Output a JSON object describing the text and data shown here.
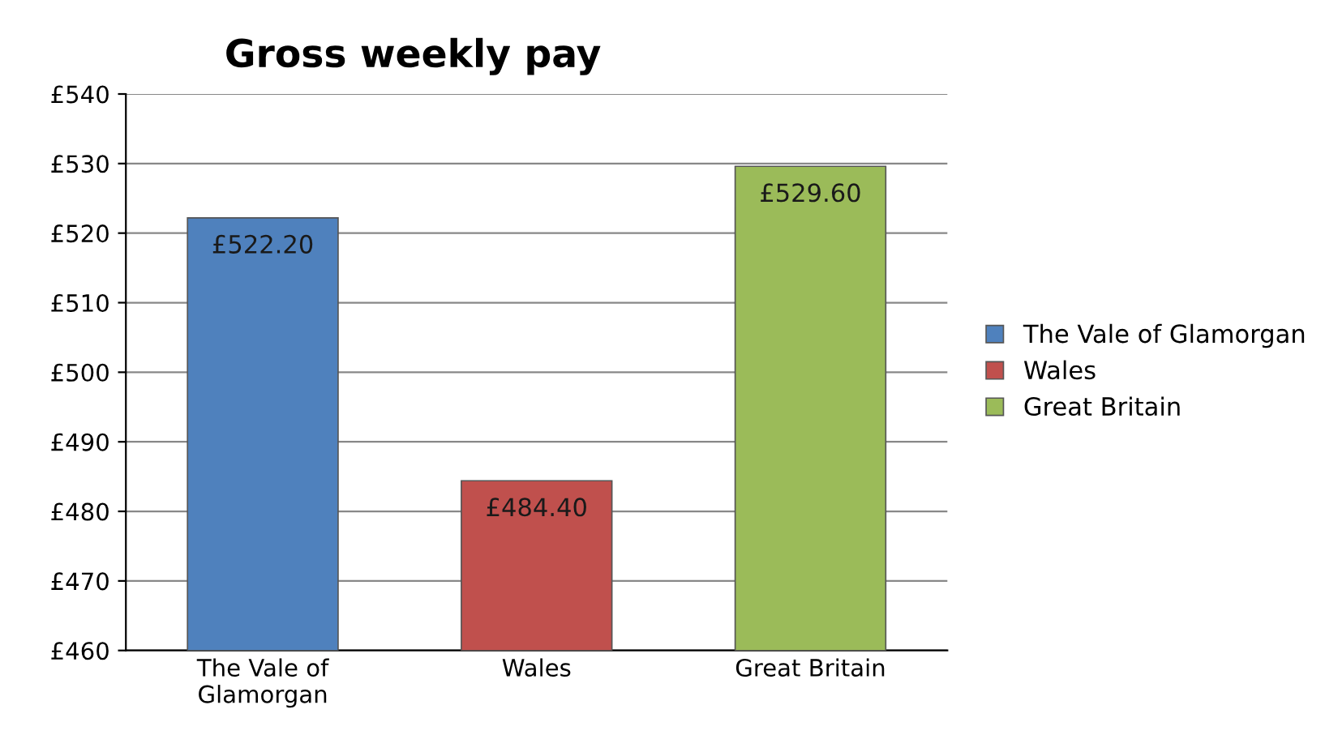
{
  "chart_data": {
    "type": "bar",
    "title": "Gross weekly pay",
    "categories": [
      "The Vale of\nGlamorgan",
      "Wales",
      "Great Britain"
    ],
    "series": [
      {
        "name": "The Vale of Glamorgan",
        "color": "#4f81bd",
        "values": [
          522.2,
          null,
          null
        ],
        "value_labels": [
          "£522.20",
          null,
          null
        ]
      },
      {
        "name": "Wales",
        "color": "#c0504d",
        "values": [
          null,
          484.4,
          null
        ],
        "value_labels": [
          null,
          "£484.40",
          null
        ]
      },
      {
        "name": "Great Britain",
        "color": "#9bbb59",
        "values": [
          null,
          null,
          529.6
        ],
        "value_labels": [
          null,
          null,
          "£529.60"
        ]
      }
    ],
    "ylim": [
      460,
      540
    ],
    "yticks": [
      {
        "value": 460,
        "label": "£460"
      },
      {
        "value": 470,
        "label": "£470"
      },
      {
        "value": 480,
        "label": "£480"
      },
      {
        "value": 490,
        "label": "£490"
      },
      {
        "value": 500,
        "label": "£500"
      },
      {
        "value": 510,
        "label": "£510"
      },
      {
        "value": 520,
        "label": "£520"
      },
      {
        "value": 530,
        "label": "£530"
      },
      {
        "value": 540,
        "label": "£540"
      }
    ],
    "grid": "y",
    "legend": "right"
  }
}
